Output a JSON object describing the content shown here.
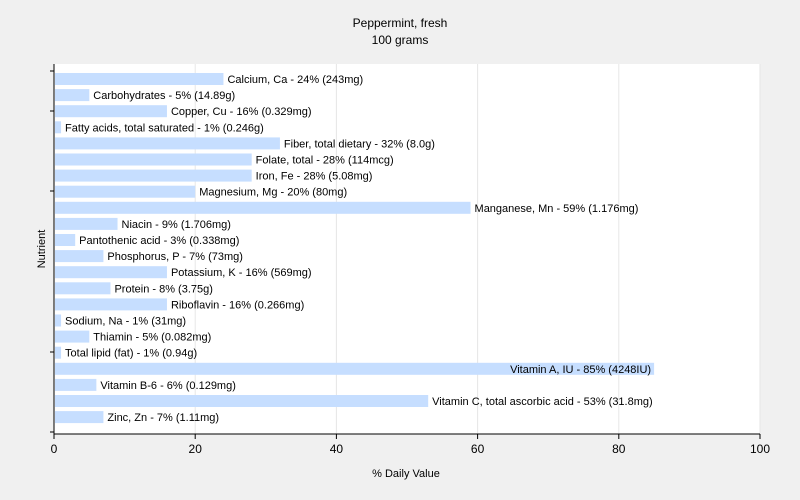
{
  "chart_data": {
    "type": "bar",
    "orientation": "horizontal",
    "title": "Peppermint, fresh",
    "subtitle": "100 grams",
    "xlabel": "% Daily Value",
    "ylabel": "Nutrient",
    "xlim": [
      0,
      100
    ],
    "xticks": [
      "0",
      "20",
      "40",
      "60",
      "80",
      "100"
    ],
    "grid": true,
    "legend": "none",
    "bar_color": "#c6deff",
    "categories": [
      "Calcium, Ca",
      "Carbohydrates",
      "Copper, Cu",
      "Fatty acids, total saturated",
      "Fiber, total dietary",
      "Folate, total",
      "Iron, Fe",
      "Magnesium, Mg",
      "Manganese, Mn",
      "Niacin",
      "Pantothenic acid",
      "Phosphorus, P",
      "Potassium, K",
      "Protein",
      "Riboflavin",
      "Sodium, Na",
      "Thiamin",
      "Total lipid (fat)",
      "Vitamin A, IU",
      "Vitamin B-6",
      "Vitamin C, total ascorbic acid",
      "Zinc, Zn"
    ],
    "values": [
      24,
      5,
      16,
      1,
      32,
      28,
      28,
      20,
      59,
      9,
      3,
      7,
      16,
      8,
      16,
      1,
      5,
      1,
      85,
      6,
      53,
      7
    ],
    "data_labels": [
      "Calcium, Ca - 24% (243mg)",
      "Carbohydrates - 5% (14.89g)",
      "Copper, Cu - 16% (0.329mg)",
      "Fatty acids, total saturated - 1% (0.246g)",
      "Fiber, total dietary - 32% (8.0g)",
      "Folate, total - 28% (114mcg)",
      "Iron, Fe - 28% (5.08mg)",
      "Magnesium, Mg - 20% (80mg)",
      "Manganese, Mn - 59% (1.176mg)",
      "Niacin - 9% (1.706mg)",
      "Pantothenic acid - 3% (0.338mg)",
      "Phosphorus, P - 7% (73mg)",
      "Potassium, K - 16% (569mg)",
      "Protein - 8% (3.75g)",
      "Riboflavin - 16% (0.266mg)",
      "Sodium, Na - 1% (31mg)",
      "Thiamin - 5% (0.082mg)",
      "Total lipid (fat) - 1% (0.94g)",
      "Vitamin A, IU - 85% (4248IU)",
      "Vitamin B-6 - 6% (0.129mg)",
      "Vitamin C, total ascorbic acid - 53% (31.8mg)",
      "Zinc, Zn - 7% (1.11mg)"
    ]
  }
}
